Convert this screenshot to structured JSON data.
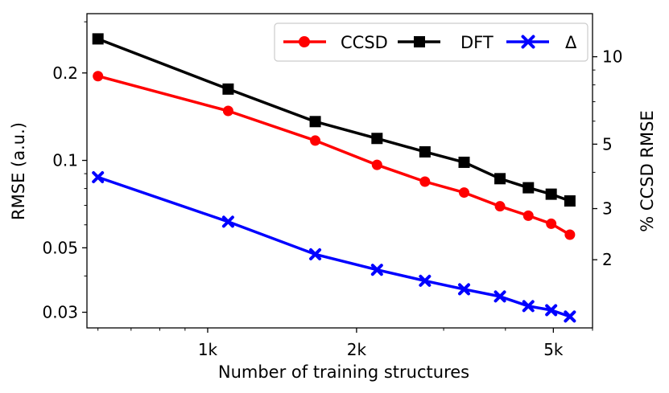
{
  "chart_data": {
    "type": "line",
    "title": "",
    "xlabel": "Number of training structures",
    "ylabel": "RMSE (a.u.)",
    "ylabel_right": "% CCSD RMSE",
    "x_scale": "log",
    "y_scale": "log",
    "xlim": [
      570,
      6000
    ],
    "ylim": [
      0.0265,
      0.32
    ],
    "ylim_right": [
      1.165,
      14.07
    ],
    "grid": false,
    "legend_position": "top-right",
    "x": [
      600,
      1100,
      1650,
      2200,
      2750,
      3300,
      3900,
      4450,
      4950,
      5400
    ],
    "x_ticks": [
      {
        "value": 1000,
        "label": "1k"
      },
      {
        "value": 2000,
        "label": "2k"
      },
      {
        "value": 5000,
        "label": "5k"
      }
    ],
    "y_ticks": [
      {
        "value": 0.03,
        "label": "0.03"
      },
      {
        "value": 0.05,
        "label": "0.05"
      },
      {
        "value": 0.1,
        "label": "0.1"
      },
      {
        "value": 0.2,
        "label": "0.2"
      }
    ],
    "y_ticks_right": [
      {
        "value": 2,
        "label": "2"
      },
      {
        "value": 3,
        "label": "3"
      },
      {
        "value": 5,
        "label": "5"
      },
      {
        "value": 10,
        "label": "10"
      }
    ],
    "series": [
      {
        "name": "CCSD",
        "color": "#ff0000",
        "marker": "circle",
        "values": [
          0.195,
          0.148,
          0.117,
          0.0965,
          0.0845,
          0.0775,
          0.0695,
          0.0645,
          0.0605,
          0.0555
        ]
      },
      {
        "name": "DFT",
        "color": "#000000",
        "marker": "square",
        "values": [
          0.262,
          0.176,
          0.136,
          0.119,
          0.107,
          0.0985,
          0.0865,
          0.0805,
          0.0765,
          0.0725
        ]
      },
      {
        "name": "Δ",
        "color": "#0000ff",
        "marker": "x",
        "values": [
          0.0875,
          0.0615,
          0.0475,
          0.042,
          0.0385,
          0.036,
          0.034,
          0.0315,
          0.0305,
          0.029
        ]
      }
    ]
  }
}
